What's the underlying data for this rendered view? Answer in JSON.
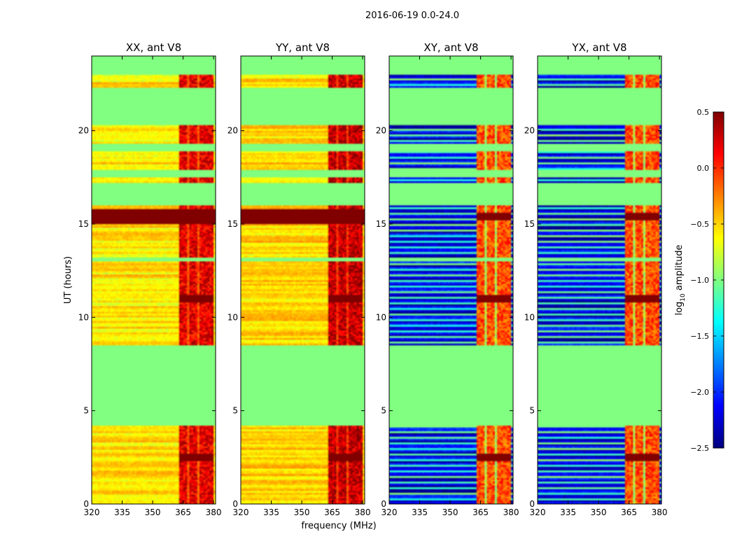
{
  "figure": {
    "suptitle": "2016-06-19 0.0-24.0",
    "xlabel": "frequency (MHz)",
    "ylabel": "UT (hours)"
  },
  "chart_data": {
    "type": "heatmap",
    "title": "2016-06-19 0.0-24.0",
    "xlabel": "frequency (MHz)",
    "ylabel": "UT (hours)",
    "xlim": [
      320,
      381
    ],
    "ylim": [
      0,
      24
    ],
    "x_ticks": [
      320,
      335,
      350,
      365,
      380
    ],
    "x_tick_labels": [
      "320",
      "335",
      "350",
      "365",
      "380"
    ],
    "y_ticks": [
      0,
      5,
      10,
      15,
      20
    ],
    "y_tick_labels": [
      "0",
      "5",
      "10",
      "15",
      "20"
    ],
    "colormap": "jet",
    "colorbar": {
      "label": "log10 amplitude",
      "label_main": "log",
      "label_sub": "10",
      "label_rest": " amplitude",
      "vmin": -2.5,
      "vmax": 0.5,
      "ticks": [
        0.5,
        0.0,
        -0.5,
        -1.0,
        -1.5,
        -2.0,
        -2.5
      ],
      "tick_labels": [
        "0.5",
        "0.0",
        "−0.5",
        "−1.0",
        "−1.5",
        "−2.0",
        "−2.5"
      ]
    },
    "flagged_value": -1.0,
    "rfi_band_mhz": [
      363,
      380
    ],
    "rfi_channels_mhz": [
      365,
      370,
      375,
      379
    ],
    "observed_ut_ranges": [
      [
        0,
        4.2
      ],
      [
        8.5,
        13.0
      ],
      [
        13.2,
        16.0
      ],
      [
        17.2,
        17.5
      ],
      [
        17.9,
        18.9
      ],
      [
        19.3,
        20.3
      ],
      [
        22.3,
        23.0
      ]
    ],
    "strong_rfi_ut_hours": [
      11,
      15.4,
      2.5
    ],
    "panels": [
      {
        "name": "XX",
        "title": "XX, ant V8",
        "base": -0.55,
        "rfi": 0.1
      },
      {
        "name": "YY",
        "title": "YY, ant V8",
        "base": -0.5,
        "rfi": 0.2
      },
      {
        "name": "XY",
        "title": "XY, ant V8",
        "base": -2.2,
        "rfi": -0.2
      },
      {
        "name": "YX",
        "title": "YX, ant V8",
        "base": -2.2,
        "rfi": -0.2
      }
    ]
  }
}
